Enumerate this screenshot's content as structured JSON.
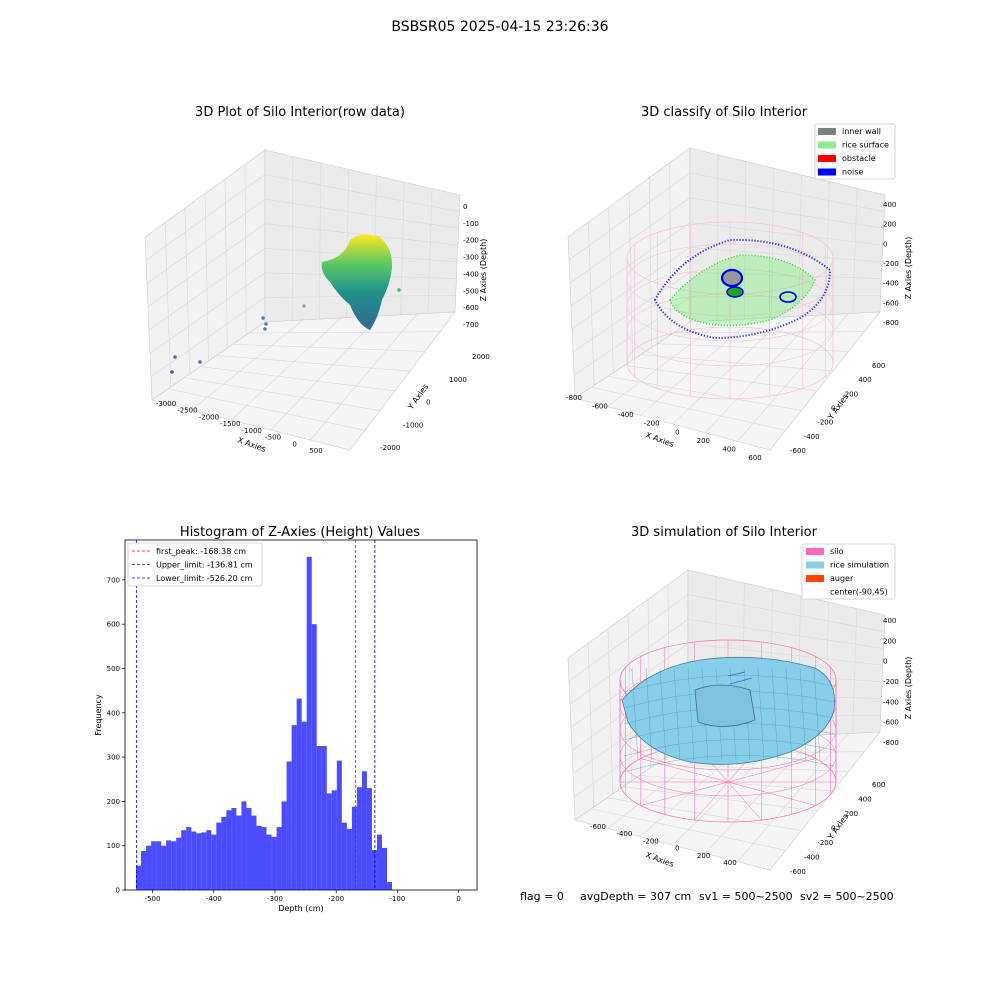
{
  "figure": {
    "suptitle": "BSBSR05 2025-04-15 23:26:36",
    "footer": {
      "flag": "flag = 0",
      "avg_depth": "avgDepth = 307 cm",
      "sv1": "sv1 = 500~2500",
      "sv2": "sv2 = 500~2500"
    }
  },
  "panels": {
    "raw": {
      "title": "3D Plot of Silo Interior(row data)",
      "xlabel": "X Axies",
      "ylabel": "Y Axies",
      "zlabel": "Z Axies (Depth)",
      "xticks": [
        "-3000",
        "-2500",
        "-2000",
        "-1500",
        "-1000",
        "-500",
        "0",
        "500"
      ],
      "yticks": [
        "2000",
        "1000",
        "0",
        "-1000",
        "-2000"
      ],
      "zticks": [
        "0",
        "-100",
        "-200",
        "-300",
        "-400",
        "-500",
        "-600",
        "-700"
      ]
    },
    "classify": {
      "title": "3D classify of Silo Interior",
      "xlabel": "X Axies",
      "ylabel": "Y Axies",
      "zlabel": "Z Axies (Depth)",
      "xticks": [
        "-800",
        "-600",
        "-400",
        "-200",
        "0",
        "200",
        "400",
        "600"
      ],
      "yticks": [
        "600",
        "400",
        "200",
        "0",
        "-200",
        "-400",
        "-600"
      ],
      "zticks": [
        "400",
        "200",
        "0",
        "-200",
        "-400",
        "-600",
        "-800"
      ],
      "legend": [
        {
          "label": "inner wall",
          "color": "#808080"
        },
        {
          "label": "rice surface",
          "color": "#90ee90"
        },
        {
          "label": "obstacle",
          "color": "#ff0000"
        },
        {
          "label": "noise",
          "color": "#0000ff"
        }
      ]
    },
    "simulation": {
      "title": "3D simulation of Silo Interior",
      "xlabel": "X Axies",
      "ylabel": "Y Axies",
      "zlabel": "Z Axies (Depth)",
      "xticks": [
        "-600",
        "-400",
        "-200",
        "0",
        "200",
        "400"
      ],
      "yticks": [
        "600",
        "400",
        "200",
        "0",
        "-200",
        "-400",
        "-600"
      ],
      "zticks": [
        "400",
        "200",
        "0",
        "-200",
        "-400",
        "-600",
        "-800"
      ],
      "legend": [
        {
          "label": "silo",
          "color": "#ff69b4"
        },
        {
          "label": "rice simulation",
          "color": "#87ceeb"
        },
        {
          "label": "auger",
          "color": "#ff4500"
        },
        {
          "label": "center(-90,45)",
          "color": ""
        }
      ]
    }
  },
  "chart_data": {
    "type": "bar",
    "title": "Histogram of Z-Axies (Height) Values",
    "xlabel": "Depth (cm)",
    "ylabel": "Frequency",
    "bar_color": "#0000ff",
    "bin_start": -527,
    "bin_width": 8.2,
    "values": [
      55,
      88,
      100,
      110,
      110,
      100,
      112,
      110,
      118,
      135,
      142,
      132,
      128,
      130,
      135,
      125,
      152,
      165,
      180,
      185,
      168,
      200,
      185,
      168,
      145,
      142,
      125,
      120,
      142,
      200,
      290,
      372,
      432,
      380,
      752,
      600,
      325,
      325,
      218,
      225,
      292,
      152,
      138,
      188,
      232,
      268,
      230,
      90,
      125,
      95,
      18
    ],
    "xlim": [
      -545,
      30
    ],
    "ylim": [
      0,
      790
    ],
    "xticks": [
      -500,
      -400,
      -300,
      -200,
      -100,
      0
    ],
    "yticks": [
      0,
      100,
      200,
      300,
      400,
      500,
      600,
      700
    ],
    "vlines": [
      {
        "label": "first_peak: -168.38 cm",
        "value": -168.38,
        "color": "#ff0000"
      },
      {
        "label": "Upper_limit: -136.81 cm",
        "value": -136.81,
        "color": "#0000aa"
      },
      {
        "label": "Lower_limit: -526.20 cm",
        "value": -526.2,
        "color": "#0000ff"
      }
    ],
    "legend_position": "upper-left"
  }
}
